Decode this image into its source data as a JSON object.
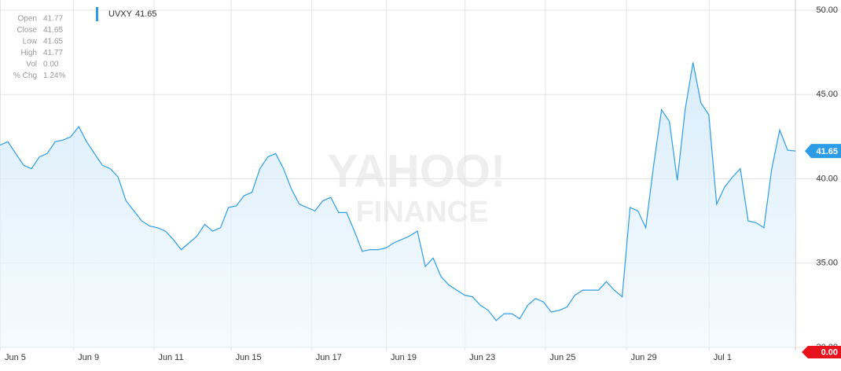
{
  "chart_data": {
    "type": "area-line",
    "info": [
      {
        "label": "Open",
        "value": "41.77"
      },
      {
        "label": "Close",
        "value": "41.65"
      },
      {
        "label": "Low",
        "value": "41.65"
      },
      {
        "label": "High",
        "value": "41.77"
      },
      {
        "label": "Vol",
        "value": "0.00"
      },
      {
        "label": "% Chg",
        "value": "1.24%"
      }
    ],
    "watermark": [
      "YAHOO!",
      "FINANCE"
    ],
    "series": [
      {
        "name": "UVXY",
        "color": "#2c9ce6",
        "values": [
          42.0,
          42.2,
          41.5,
          40.8,
          40.6,
          41.3,
          41.5,
          42.2,
          42.3,
          42.5,
          43.1,
          42.2,
          41.5,
          40.8,
          40.6,
          40.1,
          38.7,
          38.1,
          37.5,
          37.2,
          37.1,
          36.9,
          36.4,
          35.8,
          36.2,
          36.6,
          37.3,
          36.9,
          37.1,
          38.3,
          38.4,
          39.0,
          39.2,
          40.6,
          41.3,
          41.5,
          40.6,
          39.4,
          38.5,
          38.3,
          38.1,
          38.7,
          38.9,
          38.0,
          38.0,
          36.9,
          35.7,
          35.8,
          35.8,
          35.9,
          36.2,
          36.4,
          36.6,
          36.9,
          34.8,
          35.3,
          34.2,
          33.7,
          33.4,
          33.1,
          33.0,
          32.5,
          32.2,
          31.6,
          32.0,
          32.0,
          31.7,
          32.5,
          32.9,
          32.7,
          32.1,
          32.2,
          32.4,
          33.1,
          33.4,
          33.4,
          33.4,
          33.9,
          33.4,
          33.0,
          38.3,
          38.1,
          37.1,
          40.8,
          44.1,
          43.4,
          39.9,
          44.1,
          46.9,
          44.5,
          43.8,
          38.5,
          39.5,
          40.1,
          40.6,
          37.5,
          37.4,
          37.1,
          40.6,
          42.9,
          41.7,
          41.65
        ]
      }
    ],
    "xlim": [
      0,
      101
    ],
    "xticks": [
      {
        "value": 0,
        "label": "Jun 5"
      },
      {
        "value": 9.3,
        "label": "Jun 9"
      },
      {
        "value": 19.5,
        "label": "Jun 11"
      },
      {
        "value": 29.3,
        "label": "Jun 15"
      },
      {
        "value": 39.5,
        "label": "Jun 17"
      },
      {
        "value": 49,
        "label": "Jun 19"
      },
      {
        "value": 59,
        "label": "Jun 23"
      },
      {
        "value": 69.2,
        "label": "Jun 25"
      },
      {
        "value": 79.5,
        "label": "Jun 29"
      },
      {
        "value": 90,
        "label": "Jul 1"
      }
    ],
    "ylim": [
      30,
      50
    ],
    "yticks": [
      {
        "value": 30,
        "label": "30.00"
      },
      {
        "value": 35,
        "label": "35.00"
      },
      {
        "value": 40,
        "label": "40.00"
      },
      {
        "value": 45,
        "label": "45.00"
      },
      {
        "value": 50,
        "label": "50.00"
      }
    ],
    "change_badge": "0.00",
    "grid": true
  }
}
